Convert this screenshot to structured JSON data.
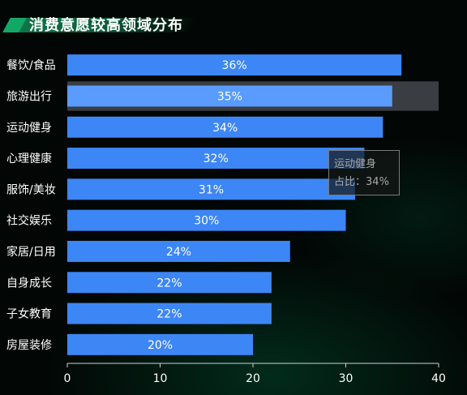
{
  "title": "消费意愿较高领域分布",
  "colors": {
    "bar": "#3d86f5",
    "bar_active": "#5a9bff",
    "highlight_band": "#3a3d42",
    "text": "#ffffff"
  },
  "tooltip": {
    "name": "运动健身",
    "label": "占比",
    "value": "34%"
  },
  "chart_data": {
    "type": "bar",
    "orientation": "horizontal",
    "title": "消费意愿较高领域分布",
    "categories": [
      "餐饮/食品",
      "旅游出行",
      "运动健身",
      "心理健康",
      "服饰/美妆",
      "社交娱乐",
      "家居/日用",
      "自身成长",
      "子女教育",
      "房屋装修"
    ],
    "values": [
      36,
      35,
      34,
      32,
      31,
      30,
      24,
      22,
      22,
      20
    ],
    "data_labels": [
      "36%",
      "35%",
      "34%",
      "32%",
      "31%",
      "30%",
      "24%",
      "22%",
      "22%",
      "20%"
    ],
    "xlim": [
      0,
      40
    ],
    "x_ticks": [
      0,
      10,
      20,
      30,
      40
    ],
    "highlighted_category": "旅游出行",
    "grid": false
  }
}
